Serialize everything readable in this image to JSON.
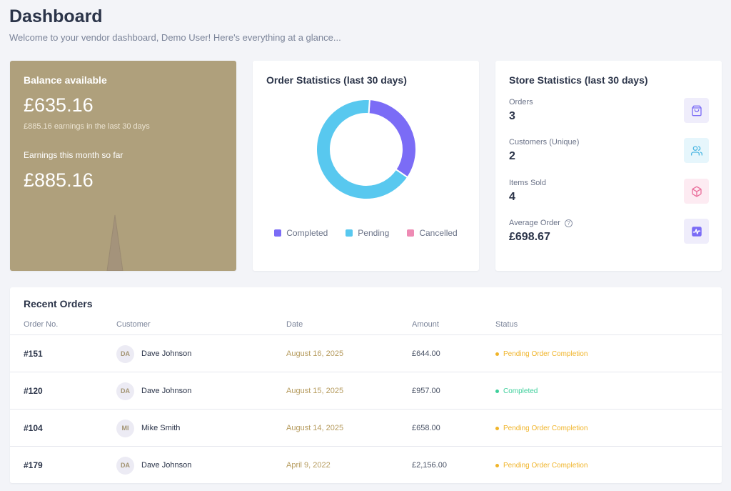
{
  "header": {
    "title": "Dashboard",
    "subtitle": "Welcome to your vendor dashboard, Demo User! Here's everything at a glance..."
  },
  "balance": {
    "title": "Balance available",
    "amount": "£635.16",
    "note": "£885.16 earnings in the last 30 days",
    "month_title": "Earnings this month so far",
    "month_amount": "£885.16",
    "color": "#afa07c"
  },
  "order_stats": {
    "title": "Order Statistics (last 30 days)",
    "legend": [
      {
        "label": "Completed",
        "color": "#7b6cf6"
      },
      {
        "label": "Pending",
        "color": "#58c8ef"
      },
      {
        "label": "Cancelled",
        "color": "#ee8bb4"
      }
    ],
    "chart_data": {
      "type": "pie",
      "categories": [
        "Completed",
        "Pending",
        "Cancelled"
      ],
      "values": [
        1,
        2,
        0
      ]
    }
  },
  "store_stats": {
    "title": "Store Statistics (last 30 days)",
    "items": [
      {
        "label": "Orders",
        "value": "3",
        "icon": "shopping-bag-icon",
        "bg": "#efedfb",
        "fg": "#7b6cf6"
      },
      {
        "label": "Customers (Unique)",
        "value": "2",
        "icon": "users-icon",
        "bg": "#e6f6fc",
        "fg": "#4fb8e3"
      },
      {
        "label": "Items Sold",
        "value": "4",
        "icon": "box-icon",
        "bg": "#fdebf2",
        "fg": "#ea6f9c"
      },
      {
        "label": "Average Order",
        "value": "£698.67",
        "icon": "activity-icon",
        "bg": "#efedfb",
        "fg": "#7b6cf6"
      }
    ]
  },
  "recent_orders": {
    "title": "Recent Orders",
    "columns": [
      "Order No.",
      "Customer",
      "Date",
      "Amount",
      "Status"
    ],
    "rows": [
      {
        "order": "#151",
        "initials": "DA",
        "customer": "Dave Johnson",
        "date": "August 16, 2025",
        "amount": "£644.00",
        "status": "Pending Order Completion",
        "status_color": "#f0b429"
      },
      {
        "order": "#120",
        "initials": "DA",
        "customer": "Dave Johnson",
        "date": "August 15, 2025",
        "amount": "£957.00",
        "status": "Completed",
        "status_color": "#3ecf9b"
      },
      {
        "order": "#104",
        "initials": "MI",
        "customer": "Mike Smith",
        "date": "August 14, 2025",
        "amount": "£658.00",
        "status": "Pending Order Completion",
        "status_color": "#f0b429"
      },
      {
        "order": "#179",
        "initials": "DA",
        "customer": "Dave Johnson",
        "date": "April 9, 2022",
        "amount": "£2,156.00",
        "status": "Pending Order Completion",
        "status_color": "#f0b429"
      }
    ]
  }
}
